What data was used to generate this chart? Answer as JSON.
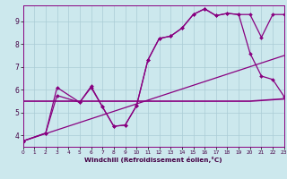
{
  "bg_color": "#cce8ed",
  "grid_color": "#aaccd6",
  "line_color": "#880080",
  "xlabel": "Windchill (Refroidissement éolien,°C)",
  "xlim": [
    0,
    23
  ],
  "ylim": [
    3.5,
    9.7
  ],
  "xticks": [
    0,
    1,
    2,
    3,
    4,
    5,
    6,
    7,
    8,
    9,
    10,
    11,
    12,
    13,
    14,
    15,
    16,
    17,
    18,
    19,
    20,
    21,
    22,
    23
  ],
  "yticks": [
    4,
    5,
    6,
    7,
    8,
    9
  ],
  "series1_x": [
    0,
    2,
    3,
    5,
    6,
    7,
    8,
    9,
    10,
    11,
    12,
    13,
    14,
    15,
    16,
    17,
    18,
    19,
    20,
    21,
    22,
    23
  ],
  "series1_y": [
    3.75,
    4.1,
    5.75,
    5.45,
    6.1,
    5.25,
    4.4,
    4.45,
    5.3,
    7.3,
    8.25,
    8.35,
    8.7,
    9.3,
    9.55,
    9.25,
    9.35,
    9.3,
    7.6,
    6.6,
    6.45,
    5.7
  ],
  "series2_x": [
    0,
    2,
    3,
    5,
    6,
    7,
    8,
    9,
    10,
    11,
    12,
    13,
    14,
    15,
    16,
    17,
    18,
    19,
    20,
    21,
    22,
    23
  ],
  "series2_y": [
    3.75,
    4.1,
    6.1,
    5.45,
    6.15,
    5.25,
    4.4,
    4.45,
    5.3,
    7.3,
    8.25,
    8.35,
    8.7,
    9.3,
    9.55,
    9.25,
    9.35,
    9.3,
    9.3,
    8.3,
    9.3,
    9.3
  ],
  "series3_x": [
    0,
    20,
    23
  ],
  "series3_y": [
    5.5,
    5.5,
    5.6
  ],
  "series4_x": [
    0,
    23
  ],
  "series4_y": [
    3.75,
    7.5
  ]
}
